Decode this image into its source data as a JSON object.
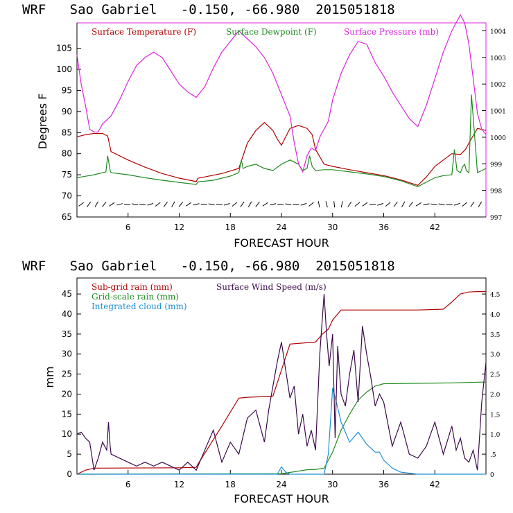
{
  "colors": {
    "temperature": "#b00000",
    "dewpoint": "#1f8a1f",
    "pressure": "#dd22dd",
    "subgrid": "#b00000",
    "gridscale": "#1f8a1f",
    "cloud": "#1c8fd6",
    "wind": "#3a0a4a"
  },
  "chart_data": [
    {
      "type": "line",
      "title": "WRF   Sao Gabriel   -0.150, -66.980  2015051818",
      "xlabel": "FORECAST HOUR",
      "ylabel": "Degrees F",
      "xlim": [
        0,
        48
      ],
      "ylim": [
        65,
        111
      ],
      "y2lim": [
        997,
        1004.3
      ],
      "xticks": [
        "6",
        "12",
        "18",
        "24",
        "30",
        "36",
        "42"
      ],
      "yticks": [
        "65",
        "70",
        "75",
        "80",
        "85",
        "90",
        "95",
        "100",
        "105"
      ],
      "y2ticks": [
        "997",
        "998",
        "999",
        "1000",
        "1001",
        "1002",
        "1003",
        "1004"
      ],
      "legend": [
        "Surface Temperature (F)",
        "Surface Dewpoint (F)",
        "Surface Pressure (mb)"
      ],
      "series": [
        {
          "name": "Surface Temperature (F)",
          "axis": "left",
          "x": [
            0,
            1,
            2,
            3,
            3.6,
            4,
            6,
            8,
            10,
            12,
            14,
            14.2,
            15,
            17,
            19,
            19.5,
            20,
            21,
            22,
            23,
            23.5,
            24,
            25,
            26,
            27,
            27.6,
            28,
            29,
            30,
            32,
            34,
            36,
            38,
            40,
            41,
            42,
            43,
            44,
            45,
            45.6,
            46,
            47,
            48
          ],
          "y": [
            84,
            84.5,
            84.8,
            84.8,
            84.2,
            80.5,
            78.5,
            76.8,
            75.3,
            74.2,
            73.4,
            74.2,
            74.5,
            75.3,
            76.5,
            79.5,
            82.5,
            85.5,
            87.4,
            85.5,
            83.5,
            82,
            86,
            86.7,
            86,
            84.5,
            81,
            77.5,
            77,
            76.2,
            75.5,
            74.8,
            73.8,
            72.5,
            74.5,
            77,
            78.5,
            80,
            79.8,
            81,
            82.5,
            86,
            85.5
          ]
        },
        {
          "name": "Surface Dewpoint (F)",
          "axis": "left",
          "x": [
            0,
            2,
            3.4,
            3.6,
            3.9,
            4,
            6,
            8,
            10,
            12,
            14,
            14.2,
            16,
            18,
            19,
            19.3,
            19.5,
            20,
            21,
            22,
            23,
            24,
            25,
            26,
            26.5,
            27,
            27.3,
            27.6,
            28,
            29,
            30,
            32,
            34,
            36,
            38,
            40,
            42,
            43,
            44,
            44.3,
            44.6,
            45,
            45.3,
            45.5,
            45.7,
            46,
            46.3,
            47,
            48
          ],
          "y": [
            74.3,
            75,
            75.7,
            79.5,
            76,
            75.5,
            75,
            74.3,
            73.7,
            73.2,
            72.7,
            73.3,
            73.7,
            74.7,
            75.5,
            78.5,
            76.5,
            77,
            77.5,
            76.5,
            76,
            77.5,
            78.5,
            77.5,
            76,
            76.5,
            79.5,
            77,
            76,
            76.2,
            76.2,
            75.7,
            75.2,
            74.6,
            73.6,
            72.2,
            74.3,
            74.8,
            75,
            81,
            76,
            75.5,
            77,
            77.5,
            76,
            75.5,
            94,
            75.5,
            76.5
          ]
        },
        {
          "name": "Surface Pressure (mb)",
          "axis": "right",
          "x": [
            0,
            0.5,
            1,
            1.5,
            2,
            2.5,
            3,
            4,
            5,
            6,
            7,
            8,
            9,
            10,
            11,
            12,
            13,
            14,
            15,
            16,
            17,
            18,
            19,
            20,
            21,
            22,
            23,
            24,
            25,
            25.5,
            26,
            26.5,
            27,
            27.5,
            28,
            28.5,
            29,
            29.5,
            30,
            31,
            32,
            33,
            34,
            35,
            36,
            37,
            38,
            39,
            40,
            41,
            42,
            43,
            44,
            45,
            45.5,
            46,
            46.5,
            47,
            47.5,
            48
          ],
          "y": [
            1003.1,
            1002,
            1001.2,
            1000.3,
            1000.2,
            1000.2,
            1000.5,
            1000.8,
            1001.4,
            1002.1,
            1002.7,
            1003,
            1003.2,
            1003,
            1002.5,
            1002,
            1001.7,
            1001.5,
            1001.9,
            1002.6,
            1003.2,
            1003.6,
            1004,
            1003.7,
            1003.4,
            1003,
            1002.4,
            1001.6,
            1000.8,
            999.8,
            999,
            998.7,
            999.3,
            999.6,
            999.5,
            1000,
            1000.3,
            1000.6,
            1001.4,
            1002.4,
            1003.1,
            1003.6,
            1003.5,
            1002.8,
            1002.3,
            1001.7,
            1001.2,
            1000.7,
            1000.4,
            1001.2,
            1002.2,
            1003.2,
            1004,
            1004.6,
            1004.3,
            1003.5,
            1002.2,
            1000.9,
            1000.3,
            1000.1
          ]
        }
      ],
      "wind_barbs_y": 68
    },
    {
      "type": "line",
      "title": "WRF   Sao Gabriel   -0.150, -66.980  2015051818",
      "xlabel": "FORECAST HOUR",
      "ylabel": "mm",
      "xlim": [
        0,
        48
      ],
      "ylim": [
        0,
        49
      ],
      "y2lim": [
        0,
        4.9
      ],
      "xticks": [
        "6",
        "12",
        "18",
        "24",
        "30",
        "36",
        "42"
      ],
      "yticks": [
        "0",
        "5",
        "10",
        "15",
        "20",
        "25",
        "30",
        "35",
        "40",
        "45"
      ],
      "y2ticks": [
        "0",
        ".5",
        "1.0",
        "1.5",
        "2.0",
        "2.5",
        "3.0",
        "3.5",
        "4.0",
        "4.5"
      ],
      "legend": [
        "Sub-grid rain (mm)",
        "Grid-scale rain (mm)",
        "Integrated cloud (mm)",
        "Surface Wind Speed (m/s)"
      ],
      "series": [
        {
          "name": "Sub-grid rain (mm)",
          "axis": "left",
          "x": [
            0,
            1,
            2,
            12,
            14,
            14.2,
            17,
            19,
            20,
            22,
            23,
            25,
            28,
            28.8,
            29.5,
            30,
            31,
            40,
            43,
            44,
            45,
            46,
            47,
            48
          ],
          "y": [
            0,
            1,
            1.5,
            1.6,
            1.7,
            2.5,
            12,
            19,
            19.2,
            19.4,
            19.5,
            32.5,
            33,
            35,
            36.2,
            38.5,
            41,
            41,
            41.2,
            43,
            45,
            45.5,
            45.6,
            45.6
          ]
        },
        {
          "name": "Grid-scale rain (mm)",
          "axis": "left",
          "x": [
            0,
            24,
            27,
            28,
            29,
            30,
            31,
            32,
            33,
            34,
            35,
            36,
            40,
            44,
            47.5,
            48
          ],
          "y": [
            0,
            0.1,
            1.1,
            1.2,
            1.5,
            5.5,
            11,
            15,
            18.5,
            20.5,
            22,
            22.6,
            22.7,
            22.8,
            23,
            23
          ]
        },
        {
          "name": "Integrated cloud (mm)",
          "axis": "left",
          "x": [
            0,
            23.5,
            24,
            24.5,
            25,
            29,
            29.5,
            30,
            30.5,
            31,
            32,
            33,
            34,
            35,
            35.5,
            36,
            37,
            38,
            40,
            48
          ],
          "y": [
            0,
            0,
            1.8,
            0.5,
            0,
            0,
            5,
            21.5,
            17.5,
            13,
            8,
            10.5,
            7.5,
            5.5,
            5.5,
            3.5,
            1.5,
            0.5,
            0,
            0
          ]
        },
        {
          "name": "Surface Wind Speed (m/s)",
          "axis": "right",
          "x": [
            0,
            0.5,
            1,
            1.5,
            2,
            2.5,
            3,
            3.5,
            3.7,
            3.9,
            4,
            5,
            6,
            7,
            8,
            9,
            10,
            11,
            12,
            13,
            14,
            15,
            16,
            17,
            18,
            19,
            20,
            21,
            22,
            22.5,
            23,
            23.5,
            24,
            24.5,
            25,
            25.5,
            26,
            26.5,
            27,
            27.5,
            28,
            28.5,
            29,
            29.3,
            29.6,
            30,
            30.3,
            30.6,
            31,
            31.5,
            32,
            32.5,
            33,
            33.5,
            34,
            34.5,
            35,
            35.5,
            36,
            37,
            38,
            39,
            40,
            41,
            42,
            43,
            44,
            44.5,
            45,
            45.5,
            46,
            46.5,
            47,
            47.5,
            48
          ],
          "y": [
            1,
            1.05,
            0.9,
            0.8,
            0.1,
            0.4,
            0.8,
            0.6,
            1.3,
            0.7,
            0.5,
            0.4,
            0.3,
            0.2,
            0.3,
            0.2,
            0.3,
            0.2,
            0.1,
            0.3,
            0.1,
            0.6,
            1.1,
            0.3,
            0.8,
            0.5,
            1.4,
            1.6,
            0.8,
            1.6,
            2.2,
            2.8,
            3.3,
            2.6,
            1.9,
            2.2,
            1.0,
            1.5,
            0.7,
            1.1,
            0.6,
            3.0,
            4.5,
            3.5,
            2.7,
            3.5,
            0.9,
            3.2,
            2.0,
            1.7,
            2.5,
            3.1,
            1.8,
            3.7,
            3.0,
            2.4,
            1.7,
            2.0,
            1.8,
            0.7,
            1.3,
            0.5,
            0.4,
            0.7,
            1.3,
            0.5,
            1.2,
            0.6,
            0.9,
            0.4,
            0.3,
            0.6,
            0.1,
            1.8,
            2.8
          ]
        }
      ]
    }
  ]
}
